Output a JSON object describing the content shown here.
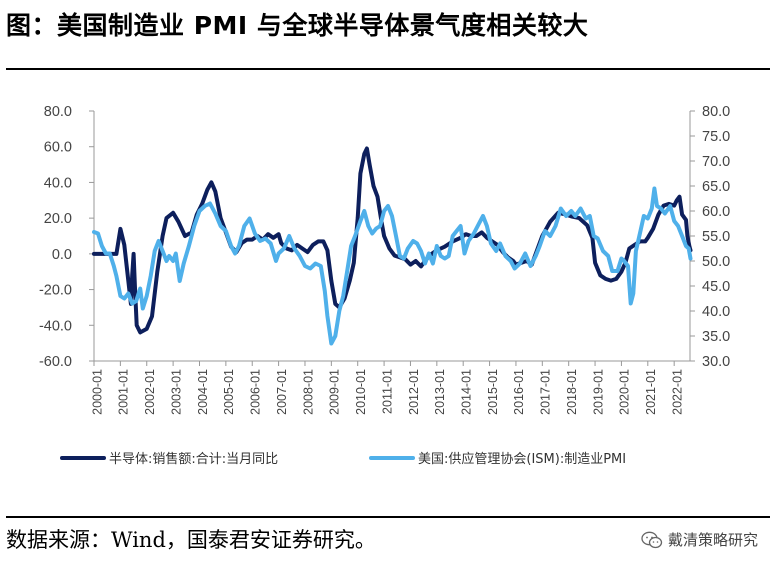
{
  "header": {
    "title": "图：美国制造业 PMI 与全球半导体景气度相关较大"
  },
  "footer": {
    "source": "数据来源：Wind，国泰君安证券研究。",
    "watermark": "戴清策略研究",
    "watermark_icon": "wechat-icon"
  },
  "colors": {
    "series_dark": "#0d1f5c",
    "series_light": "#4fb0ea",
    "axis": "#999999"
  },
  "chart_data": {
    "type": "line",
    "title": "美国制造业 PMI 与全球半导体景气度相关较大",
    "x_labels": [
      "2000-01",
      "2001-01",
      "2002-01",
      "2003-01",
      "2004-01",
      "2005-01",
      "2006-01",
      "2007-01",
      "2008-01",
      "2009-01",
      "2010-01",
      "2011-01",
      "2012-01",
      "2013-01",
      "2014-01",
      "2015-01",
      "2016-01",
      "2017-01",
      "2018-01",
      "2019-01",
      "2020-01",
      "2021-01",
      "2022-01"
    ],
    "x_range": [
      2000.0,
      2022.6
    ],
    "y_left": {
      "range": [
        -60,
        80
      ],
      "ticks": [
        "-60.0",
        "-40.0",
        "-20.0",
        "0.0",
        "20.0",
        "40.0",
        "60.0",
        "80.0"
      ]
    },
    "y_right": {
      "range": [
        30,
        80
      ],
      "ticks": [
        "30.0",
        "35.0",
        "40.0",
        "45.0",
        "50.0",
        "55.0",
        "60.0",
        "65.0",
        "70.0",
        "75.0",
        "80.0"
      ]
    },
    "series": [
      {
        "name": "半导体:销售额:合计:当月同比",
        "axis": "left",
        "color": "#0d1f5c",
        "points": [
          [
            2000.0,
            0
          ],
          [
            2000.5,
            0
          ],
          [
            2000.85,
            0
          ],
          [
            2001.0,
            14
          ],
          [
            2001.15,
            5
          ],
          [
            2001.3,
            -15
          ],
          [
            2001.4,
            -28
          ],
          [
            2001.45,
            -12
          ],
          [
            2001.5,
            0
          ],
          [
            2001.55,
            -18
          ],
          [
            2001.62,
            -40
          ],
          [
            2001.75,
            -44
          ],
          [
            2002.0,
            -42
          ],
          [
            2002.2,
            -35
          ],
          [
            2002.4,
            -10
          ],
          [
            2002.6,
            10
          ],
          [
            2002.75,
            20
          ],
          [
            2003.0,
            23
          ],
          [
            2003.2,
            18
          ],
          [
            2003.45,
            10
          ],
          [
            2003.7,
            12
          ],
          [
            2003.9,
            22
          ],
          [
            2004.1,
            28
          ],
          [
            2004.3,
            36
          ],
          [
            2004.45,
            40
          ],
          [
            2004.6,
            35
          ],
          [
            2004.8,
            20
          ],
          [
            2005.0,
            12
          ],
          [
            2005.2,
            4
          ],
          [
            2005.4,
            1
          ],
          [
            2005.6,
            6
          ],
          [
            2005.8,
            8
          ],
          [
            2006.0,
            8
          ],
          [
            2006.2,
            10
          ],
          [
            2006.4,
            8
          ],
          [
            2006.6,
            11
          ],
          [
            2006.8,
            9
          ],
          [
            2007.0,
            11
          ],
          [
            2007.1,
            6
          ],
          [
            2007.3,
            3
          ],
          [
            2007.5,
            2
          ],
          [
            2007.7,
            5
          ],
          [
            2007.9,
            3
          ],
          [
            2008.1,
            1
          ],
          [
            2008.3,
            5
          ],
          [
            2008.5,
            7
          ],
          [
            2008.7,
            7
          ],
          [
            2008.85,
            2
          ],
          [
            2009.0,
            -15
          ],
          [
            2009.15,
            -28
          ],
          [
            2009.3,
            -30
          ],
          [
            2009.5,
            -25
          ],
          [
            2009.7,
            -15
          ],
          [
            2009.85,
            -5
          ],
          [
            2010.0,
            20
          ],
          [
            2010.1,
            45
          ],
          [
            2010.25,
            56
          ],
          [
            2010.35,
            59
          ],
          [
            2010.45,
            50
          ],
          [
            2010.6,
            38
          ],
          [
            2010.75,
            32
          ],
          [
            2010.9,
            18
          ],
          [
            2011.0,
            10
          ],
          [
            2011.2,
            3
          ],
          [
            2011.4,
            -1
          ],
          [
            2011.6,
            -2
          ],
          [
            2011.8,
            -3
          ],
          [
            2012.0,
            -6
          ],
          [
            2012.2,
            -4
          ],
          [
            2012.4,
            -7
          ],
          [
            2012.6,
            -3
          ],
          [
            2012.8,
            0
          ],
          [
            2013.0,
            2
          ],
          [
            2013.3,
            4
          ],
          [
            2013.6,
            7
          ],
          [
            2013.9,
            9
          ],
          [
            2014.1,
            11
          ],
          [
            2014.3,
            10
          ],
          [
            2014.5,
            10
          ],
          [
            2014.7,
            12
          ],
          [
            2014.9,
            9
          ],
          [
            2015.1,
            7
          ],
          [
            2015.3,
            5
          ],
          [
            2015.5,
            1
          ],
          [
            2015.7,
            -2
          ],
          [
            2015.9,
            -4
          ],
          [
            2016.0,
            -6
          ],
          [
            2016.2,
            -5
          ],
          [
            2016.4,
            -4
          ],
          [
            2016.6,
            -6
          ],
          [
            2016.8,
            2
          ],
          [
            2017.0,
            10
          ],
          [
            2017.3,
            18
          ],
          [
            2017.6,
            23
          ],
          [
            2017.9,
            22
          ],
          [
            2018.1,
            21
          ],
          [
            2018.4,
            20
          ],
          [
            2018.7,
            16
          ],
          [
            2018.9,
            9
          ],
          [
            2019.0,
            -5
          ],
          [
            2019.2,
            -12
          ],
          [
            2019.4,
            -14
          ],
          [
            2019.6,
            -15
          ],
          [
            2019.8,
            -14
          ],
          [
            2020.0,
            -10
          ],
          [
            2020.15,
            -5
          ],
          [
            2020.3,
            3
          ],
          [
            2020.5,
            5
          ],
          [
            2020.7,
            7
          ],
          [
            2020.9,
            7
          ],
          [
            2021.0,
            9
          ],
          [
            2021.2,
            14
          ],
          [
            2021.4,
            22
          ],
          [
            2021.6,
            27
          ],
          [
            2021.8,
            28
          ],
          [
            2022.0,
            27
          ],
          [
            2022.1,
            30
          ],
          [
            2022.2,
            32
          ],
          [
            2022.3,
            22
          ],
          [
            2022.45,
            19
          ],
          [
            2022.5,
            10
          ],
          [
            2022.58,
            4
          ],
          [
            2022.62,
            2
          ]
        ]
      },
      {
        "name": "美国:供应管理协会(ISM):制造业PMI",
        "axis": "right",
        "color": "#4fb0ea",
        "points": [
          [
            2000.0,
            55.8
          ],
          [
            2000.15,
            55.5
          ],
          [
            2000.3,
            53
          ],
          [
            2000.45,
            51.5
          ],
          [
            2000.6,
            51.5
          ],
          [
            2000.75,
            49
          ],
          [
            2000.85,
            47
          ],
          [
            2001.0,
            43
          ],
          [
            2001.15,
            42.5
          ],
          [
            2001.3,
            43.5
          ],
          [
            2001.45,
            41.5
          ],
          [
            2001.6,
            42
          ],
          [
            2001.75,
            44.5
          ],
          [
            2001.85,
            40.5
          ],
          [
            2002.0,
            43
          ],
          [
            2002.15,
            47
          ],
          [
            2002.3,
            52
          ],
          [
            2002.45,
            54
          ],
          [
            2002.6,
            52
          ],
          [
            2002.75,
            50
          ],
          [
            2002.85,
            51
          ],
          [
            2003.0,
            50
          ],
          [
            2003.1,
            51.5
          ],
          [
            2003.25,
            46
          ],
          [
            2003.4,
            49.5
          ],
          [
            2003.6,
            53
          ],
          [
            2003.8,
            57
          ],
          [
            2004.0,
            60
          ],
          [
            2004.2,
            61
          ],
          [
            2004.4,
            61.5
          ],
          [
            2004.6,
            59.5
          ],
          [
            2004.8,
            57
          ],
          [
            2005.0,
            56
          ],
          [
            2005.2,
            53
          ],
          [
            2005.35,
            51.5
          ],
          [
            2005.5,
            53
          ],
          [
            2005.7,
            57
          ],
          [
            2005.9,
            58.5
          ],
          [
            2006.1,
            55.5
          ],
          [
            2006.3,
            54
          ],
          [
            2006.5,
            54.5
          ],
          [
            2006.7,
            53.5
          ],
          [
            2006.9,
            50
          ],
          [
            2007.0,
            51.5
          ],
          [
            2007.2,
            52.5
          ],
          [
            2007.4,
            55
          ],
          [
            2007.6,
            52.5
          ],
          [
            2007.8,
            51
          ],
          [
            2008.0,
            49
          ],
          [
            2008.2,
            48.5
          ],
          [
            2008.4,
            49.5
          ],
          [
            2008.6,
            49
          ],
          [
            2008.75,
            44
          ],
          [
            2008.85,
            39
          ],
          [
            2009.0,
            33.5
          ],
          [
            2009.15,
            35
          ],
          [
            2009.3,
            40
          ],
          [
            2009.45,
            43
          ],
          [
            2009.6,
            48
          ],
          [
            2009.75,
            53
          ],
          [
            2009.9,
            55
          ],
          [
            2010.1,
            58
          ],
          [
            2010.25,
            60
          ],
          [
            2010.4,
            57
          ],
          [
            2010.55,
            55.5
          ],
          [
            2010.7,
            56.5
          ],
          [
            2010.85,
            57
          ],
          [
            2011.0,
            60
          ],
          [
            2011.15,
            61
          ],
          [
            2011.3,
            59
          ],
          [
            2011.45,
            55
          ],
          [
            2011.6,
            51
          ],
          [
            2011.75,
            50.5
          ],
          [
            2011.9,
            52.5
          ],
          [
            2012.1,
            54
          ],
          [
            2012.25,
            53.5
          ],
          [
            2012.4,
            52
          ],
          [
            2012.55,
            49.5
          ],
          [
            2012.7,
            51.5
          ],
          [
            2012.85,
            49.5
          ],
          [
            2013.0,
            53
          ],
          [
            2013.15,
            51
          ],
          [
            2013.3,
            50.5
          ],
          [
            2013.45,
            51
          ],
          [
            2013.6,
            55
          ],
          [
            2013.75,
            56
          ],
          [
            2013.9,
            57
          ],
          [
            2014.05,
            51.5
          ],
          [
            2014.2,
            54
          ],
          [
            2014.4,
            55.5
          ],
          [
            2014.6,
            57.5
          ],
          [
            2014.75,
            59
          ],
          [
            2014.9,
            57
          ],
          [
            2015.05,
            53.5
          ],
          [
            2015.25,
            52
          ],
          [
            2015.4,
            53.5
          ],
          [
            2015.6,
            51
          ],
          [
            2015.8,
            50
          ],
          [
            2015.95,
            48.5
          ],
          [
            2016.15,
            49.5
          ],
          [
            2016.35,
            51.5
          ],
          [
            2016.55,
            49
          ],
          [
            2016.75,
            51
          ],
          [
            2016.9,
            53
          ],
          [
            2017.1,
            56
          ],
          [
            2017.3,
            55
          ],
          [
            2017.5,
            57
          ],
          [
            2017.7,
            60.5
          ],
          [
            2017.9,
            59
          ],
          [
            2018.1,
            60
          ],
          [
            2018.25,
            59
          ],
          [
            2018.45,
            60.5
          ],
          [
            2018.65,
            58.5
          ],
          [
            2018.8,
            59
          ],
          [
            2018.95,
            55
          ],
          [
            2019.1,
            54.5
          ],
          [
            2019.3,
            52
          ],
          [
            2019.5,
            51
          ],
          [
            2019.65,
            48
          ],
          [
            2019.85,
            48
          ],
          [
            2020.0,
            50.5
          ],
          [
            2020.1,
            50
          ],
          [
            2020.25,
            49
          ],
          [
            2020.35,
            41.5
          ],
          [
            2020.45,
            43.5
          ],
          [
            2020.55,
            52
          ],
          [
            2020.7,
            55.5
          ],
          [
            2020.85,
            59
          ],
          [
            2021.0,
            58.5
          ],
          [
            2021.15,
            60.5
          ],
          [
            2021.25,
            64.5
          ],
          [
            2021.35,
            61
          ],
          [
            2021.5,
            60.5
          ],
          [
            2021.65,
            59.5
          ],
          [
            2021.85,
            61
          ],
          [
            2022.0,
            58
          ],
          [
            2022.15,
            57
          ],
          [
            2022.3,
            55
          ],
          [
            2022.45,
            53
          ],
          [
            2022.55,
            52.5
          ],
          [
            2022.62,
            50.5
          ]
        ]
      }
    ],
    "legend": {
      "position": "bottom",
      "labels": [
        "半导体:销售额:合计:当月同比",
        "美国:供应管理协会(ISM):制造业PMI"
      ]
    },
    "grid": false
  }
}
